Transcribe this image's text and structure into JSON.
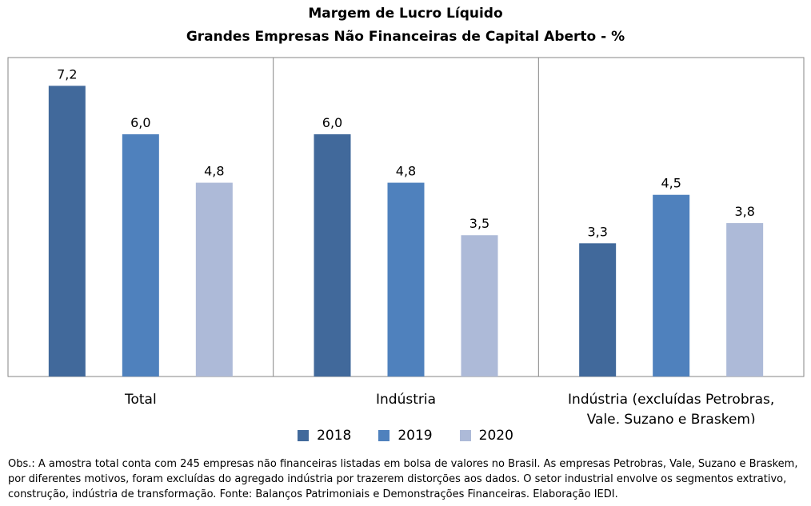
{
  "chart_data": {
    "type": "bar",
    "title": "Margem de Lucro Líquido",
    "subtitle": "Grandes Empresas Não Financeiras de Capital Aberto - %",
    "categories": [
      "Total",
      "Indústria",
      "Indústria  (excluídas Petrobras, Vale, Suzano e Braskem)"
    ],
    "category_lines": [
      [
        "Total"
      ],
      [
        "Indústria"
      ],
      [
        "Indústria  (excluídas Petrobras,",
        "Vale, Suzano e Braskem)"
      ]
    ],
    "series": [
      {
        "name": "2018",
        "values": [
          7.2,
          6.0,
          3.3
        ],
        "labels": [
          "7,2",
          "6,0",
          "3,3"
        ],
        "color": "#41699b"
      },
      {
        "name": "2019",
        "values": [
          6.0,
          4.8,
          4.5
        ],
        "labels": [
          "6,0",
          "4,8",
          "4,5"
        ],
        "color": "#4f81bd"
      },
      {
        "name": "2020",
        "values": [
          4.8,
          3.5,
          3.8
        ],
        "labels": [
          "4,8",
          "3,5",
          "3,8"
        ],
        "color": "#adbad8"
      }
    ],
    "ylim": [
      0,
      7.9
    ],
    "grid": false,
    "legend_position": "bottom"
  },
  "note": "Obs.: A amostra total conta com 245 empresas não financeiras listadas em bolsa de valores no Brasil. As empresas Petrobras, Vale, Suzano e Braskem, por diferentes motivos, foram excluídas do agregado indústria por trazerem distorções aos dados. O setor industrial envolve os segmentos extrativo, construção, indústria de transformação. Fonte: Balanços Patrimoniais e Demonstrações Financeiras. Elaboração IEDI."
}
